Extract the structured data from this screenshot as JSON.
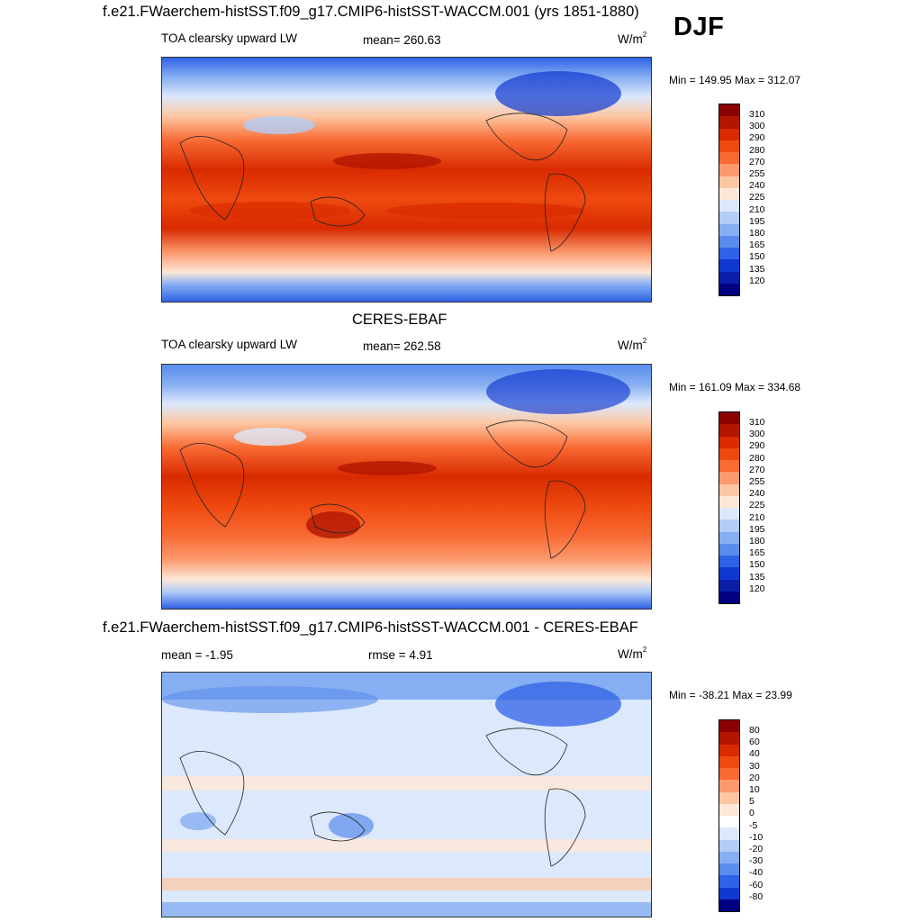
{
  "season": "DJF",
  "panels": [
    {
      "title": "f.e21.FWaerchem-histSST.f09_g17.CMIP6-histSST-WACCM.001 (yrs 1851-1880)",
      "left": "TOA clearsky upward LW",
      "mean": "mean= 260.63",
      "units": "W/m",
      "units_sup": "2",
      "minmax": "Min = 149.95 Max = 312.07",
      "colorbar_labels": [
        "310",
        "300",
        "290",
        "280",
        "270",
        "255",
        "240",
        "225",
        "210",
        "195",
        "180",
        "165",
        "150",
        "135",
        "120"
      ]
    },
    {
      "title": "CERES-EBAF",
      "left": "TOA clearsky upward LW",
      "mean": "mean= 262.58",
      "units": "W/m",
      "units_sup": "2",
      "minmax": "Min = 161.09 Max = 334.68",
      "colorbar_labels": [
        "310",
        "300",
        "290",
        "280",
        "270",
        "255",
        "240",
        "225",
        "210",
        "195",
        "180",
        "165",
        "150",
        "135",
        "120"
      ]
    },
    {
      "title": "f.e21.FWaerchem-histSST.f09_g17.CMIP6-histSST-WACCM.001 - CERES-EBAF",
      "left": "mean =  -1.95",
      "mean": "rmse =    4.91",
      "units": "W/m",
      "units_sup": "2",
      "minmax": "Min = -38.21 Max =  23.99",
      "colorbar_labels": [
        "80",
        "60",
        "40",
        "30",
        "20",
        "10",
        "5",
        "0",
        "-5",
        "-10",
        "-20",
        "-30",
        "-40",
        "-60",
        "-80"
      ]
    }
  ],
  "colors": {
    "abs_scale": [
      "#8b0000",
      "#b21500",
      "#d92a00",
      "#ee4a10",
      "#f86a33",
      "#fb9a6f",
      "#fcc7a3",
      "#fde8d7",
      "#dce8fb",
      "#b3cdf7",
      "#86aef2",
      "#5a8cec",
      "#2f62e6",
      "#1038d0",
      "#0a1ea8",
      "#000080"
    ],
    "diff_scale": [
      "#8b0000",
      "#b21500",
      "#d92a00",
      "#ee4a10",
      "#f86a33",
      "#fb9a6f",
      "#fcc7a3",
      "#fde8d7",
      "#ffffff",
      "#dce8fb",
      "#b3cdf7",
      "#86aef2",
      "#5a8cec",
      "#2f62e6",
      "#1038d0",
      "#000080"
    ]
  }
}
